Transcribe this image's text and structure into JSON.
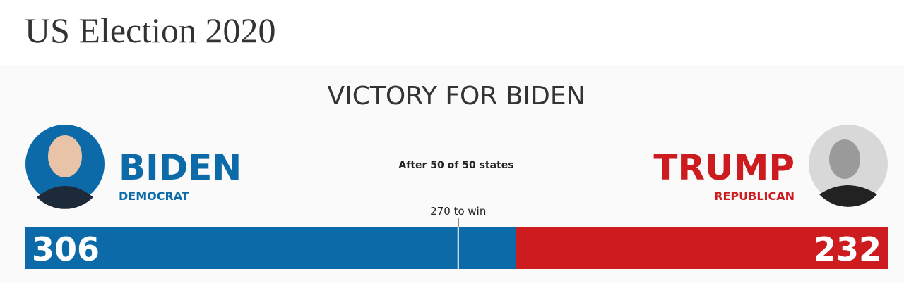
{
  "header": {
    "title": "US Election 2020"
  },
  "panel": {
    "headline": "VICTORY FOR BIDEN",
    "progress": "After 50 of 50 states",
    "threshold": {
      "value": 270,
      "label": "270 to win"
    },
    "candidates": [
      {
        "name": "BIDEN",
        "party": "DEMOCRAT",
        "votes": 306,
        "color": "#0d6aa8"
      },
      {
        "name": "TRUMP",
        "party": "REPUBLICAN",
        "votes": 232,
        "color": "#cc1c20"
      }
    ]
  }
}
